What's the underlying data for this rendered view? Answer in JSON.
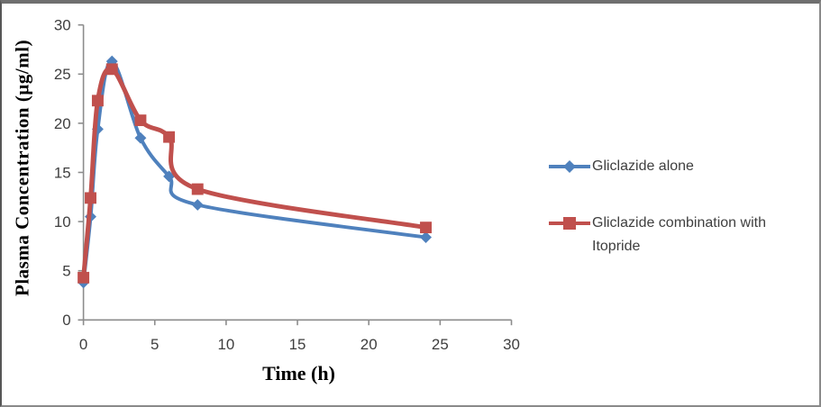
{
  "frame": {
    "background": "#ffffff",
    "border_color": "#8a8a8a"
  },
  "axis_style": {
    "line_color": "#8c8c8c",
    "tick_label_color": "#3f3f3f",
    "tick_font_size": 17
  },
  "chart_data": {
    "type": "line",
    "x": [
      0,
      0.5,
      1,
      2,
      4,
      6,
      8,
      24
    ],
    "series": [
      {
        "name": "Gliclazide alone",
        "color": "#4F81BD",
        "marker": "diamond",
        "line_width": 4,
        "values": [
          3.8,
          10.5,
          19.4,
          26.3,
          18.5,
          14.6,
          11.7,
          8.4
        ]
      },
      {
        "name": "Gliclazide combination with Itopride",
        "color": "#C0504D",
        "marker": "square",
        "line_width": 5,
        "values": [
          4.3,
          12.4,
          22.3,
          25.5,
          20.3,
          18.6,
          13.3,
          9.4
        ]
      }
    ],
    "title": "",
    "xlabel": "Time (h)",
    "ylabel": "Plasma Concentration (µg/ml)",
    "xlim": [
      0,
      30
    ],
    "ylim": [
      0,
      30
    ],
    "x_ticks": [
      0,
      5,
      10,
      15,
      20,
      25,
      30
    ],
    "y_ticks": [
      0,
      5,
      10,
      15,
      20,
      25,
      30
    ],
    "grid": false,
    "smooth": true,
    "legend_position": "right"
  }
}
